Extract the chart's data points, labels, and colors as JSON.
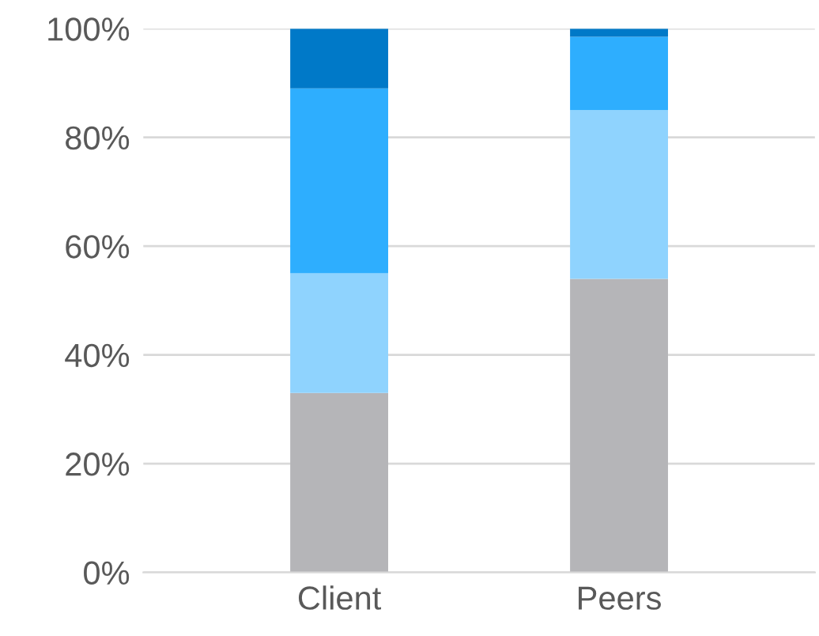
{
  "chart_data": {
    "type": "bar",
    "stacked": true,
    "categories": [
      "Client",
      "Peers"
    ],
    "series": [
      {
        "color": "#b5b5b8",
        "values": [
          33,
          54
        ]
      },
      {
        "color": "#8fd3fe",
        "values": [
          22,
          31
        ]
      },
      {
        "color": "#2eaefe",
        "values": [
          34,
          13.5
        ]
      },
      {
        "color": "#0079c8",
        "values": [
          11,
          1.5
        ]
      }
    ],
    "ylim": [
      0,
      100
    ],
    "yticks": [
      {
        "value": 0,
        "label": "0%"
      },
      {
        "value": 20,
        "label": "20%"
      },
      {
        "value": 40,
        "label": "40%"
      },
      {
        "value": 60,
        "label": "60%"
      },
      {
        "value": 80,
        "label": "80%"
      },
      {
        "value": 100,
        "label": "100%"
      }
    ],
    "grid": "y",
    "legend": false
  }
}
